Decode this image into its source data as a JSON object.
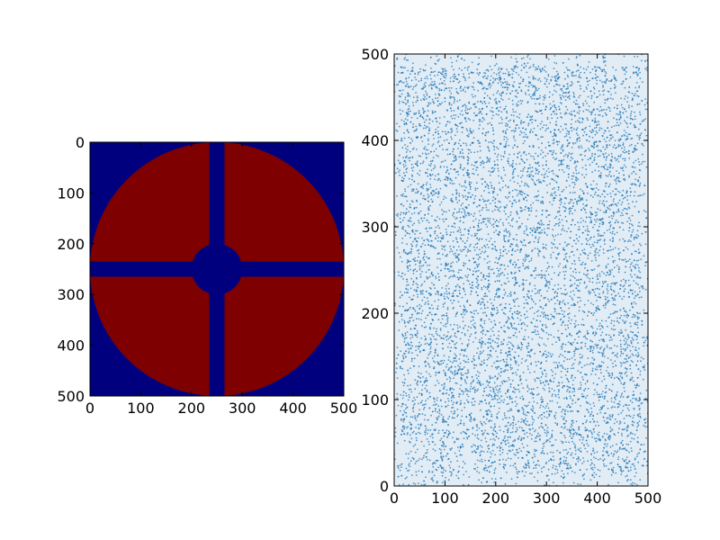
{
  "chart_data": [
    {
      "type": "heatmap",
      "title": "",
      "xlabel": "",
      "ylabel": "",
      "xlim": [
        0,
        500
      ],
      "ylim": [
        500,
        0
      ],
      "xticks": [
        0,
        100,
        200,
        300,
        400,
        500
      ],
      "yticks": [
        0,
        100,
        200,
        300,
        400,
        500
      ],
      "grid": false,
      "colors": {
        "background": "#00007f",
        "disk": "#7f0000"
      },
      "image": {
        "size": [
          500,
          500
        ],
        "description_values": {
          "disk_center": [
            250,
            250
          ],
          "disk_radius": 250,
          "cross_bar_x": [
            235,
            265
          ],
          "cross_bar_y": [
            235,
            265
          ],
          "center_hole_radius": 50
        }
      }
    },
    {
      "type": "scatter",
      "title": "",
      "xlabel": "",
      "ylabel": "",
      "xlim": [
        0,
        500
      ],
      "ylim": [
        0,
        500
      ],
      "xticks": [
        0,
        100,
        200,
        300,
        400,
        500
      ],
      "yticks": [
        0,
        100,
        200,
        300,
        400,
        500
      ],
      "grid": false,
      "colors": {
        "points": "#1f77b4"
      }
    }
  ]
}
